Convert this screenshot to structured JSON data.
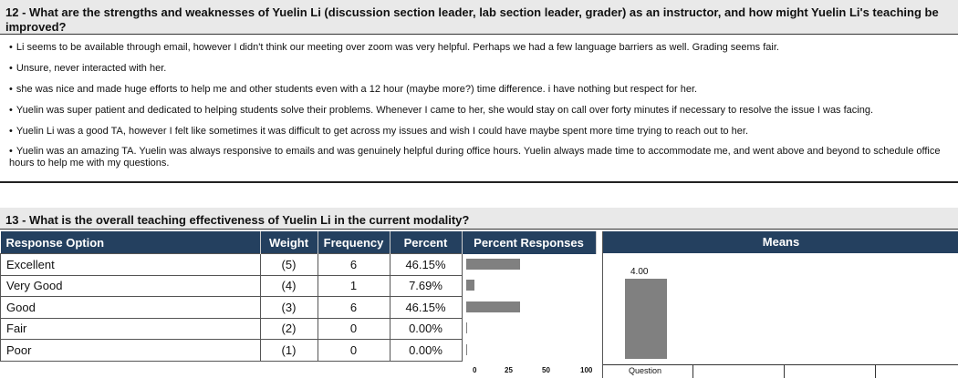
{
  "q12": {
    "title": "12 - What are the strengths and weaknesses of Yuelin Li (discussion section leader, lab section leader, grader) as an instructor, and how might Yuelin Li's teaching be improved?",
    "bullet": "•",
    "comments": [
      "Li seems to be available through email, however I didn't think our meeting over zoom was very helpful. Perhaps we had a few language barriers as well. Grading seems fair.",
      "Unsure, never interacted with her.",
      "she was nice and made huge efforts to help me and other students even with a 12 hour (maybe more?) time difference. i have nothing but respect for her.",
      "Yuelin was super patient and dedicated to helping students solve their problems. Whenever I came to her, she would stay on call over forty minutes if necessary to resolve the issue I was facing.",
      "Yuelin Li was a good TA, however I felt like sometimes it was difficult to get across my issues and wish I could have maybe spent more time trying to reach out to her.",
      "Yuelin was an amazing TA. Yuelin was always responsive to emails and was genuinely helpful during office hours. Yuelin always made time to accommodate me, and went above and beyond to schedule office hours to help me with my questions."
    ]
  },
  "q13": {
    "title": "13 - What is the overall teaching effectiveness of Yuelin Li in the current modality?",
    "headers": {
      "option": "Response Option",
      "weight": "Weight",
      "frequency": "Frequency",
      "percent": "Percent",
      "percent_responses": "Percent Responses",
      "means": "Means"
    },
    "rows": [
      {
        "option": "Excellent",
        "weight": "(5)",
        "frequency": "6",
        "percent": "46.15%",
        "pct_value": 46.15
      },
      {
        "option": "Very Good",
        "weight": "(4)",
        "frequency": "1",
        "percent": "7.69%",
        "pct_value": 7.69
      },
      {
        "option": "Good",
        "weight": "(3)",
        "frequency": "6",
        "percent": "46.15%",
        "pct_value": 46.15
      },
      {
        "option": "Fair",
        "weight": "(2)",
        "frequency": "0",
        "percent": "0.00%",
        "pct_value": 0
      },
      {
        "option": "Poor",
        "weight": "(1)",
        "frequency": "0",
        "percent": "0.00%",
        "pct_value": 0
      }
    ],
    "axis_ticks": [
      "0",
      "25",
      "50",
      "100"
    ],
    "means": {
      "value_label": "4.00",
      "value": 4.0,
      "scale_max": 5,
      "x_label": "Question"
    }
  }
}
